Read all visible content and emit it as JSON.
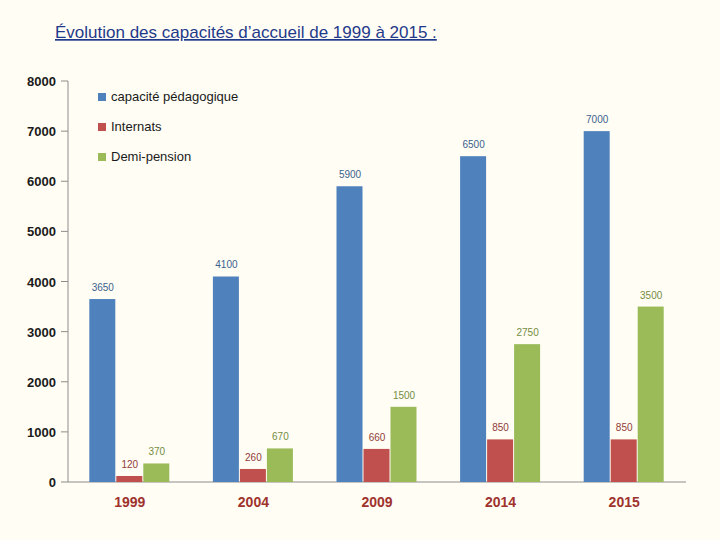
{
  "chart_data": {
    "type": "bar",
    "title": "Évolution des capacités d’accueil de 1999 à 2015  :",
    "categories": [
      "1999",
      "2004",
      "2009",
      "2014",
      "2015"
    ],
    "series": [
      {
        "name": "capacité pédagogique",
        "color": "#4f81bd",
        "values": [
          3650,
          4100,
          5900,
          6500,
          7000
        ]
      },
      {
        "name": "Internats",
        "color": "#c0504d",
        "values": [
          120,
          260,
          660,
          850,
          850
        ]
      },
      {
        "name": "Demi-pension",
        "color": "#9bbb59",
        "values": [
          370,
          670,
          1500,
          2750,
          3500
        ]
      }
    ],
    "ylim": [
      0,
      8000
    ],
    "yticks": [
      0,
      1000,
      2000,
      3000,
      4000,
      5000,
      6000,
      7000,
      8000
    ],
    "grid": false,
    "legend": "top-left",
    "data_labels": true
  }
}
